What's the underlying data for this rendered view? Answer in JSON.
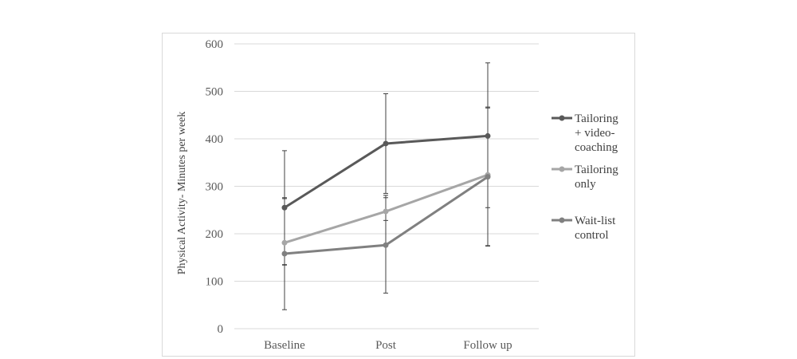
{
  "chart_data": {
    "type": "line",
    "title": "",
    "xlabel": "",
    "ylabel": "Physical Activity- Minutes per week",
    "ylim": [
      0,
      600
    ],
    "yticks": [
      0,
      100,
      200,
      300,
      400,
      500,
      600
    ],
    "categories": [
      "Baseline",
      "Post",
      "Follow up"
    ],
    "grid": "horizontal",
    "legend_position": "right",
    "series": [
      {
        "name": "Tailoring + video-coaching",
        "legend_lines": [
          "Tailoring",
          "+ video-",
          "coaching"
        ],
        "color": "#595959",
        "values": [
          255,
          390,
          406
        ],
        "error_low": [
          135,
          285,
          255
        ],
        "error_high": [
          375,
          495,
          560
        ]
      },
      {
        "name": "Tailoring only",
        "legend_lines": [
          "Tailoring",
          "only"
        ],
        "color": "#a6a6a6",
        "values": [
          181,
          247,
          324
        ],
        "error_low": [
          134,
          228,
          174
        ],
        "error_high": [
          274,
          281,
          467
        ]
      },
      {
        "name": "Wait-list control",
        "legend_lines": [
          "Wait-list",
          "control"
        ],
        "color": "#808080",
        "values": [
          158,
          176,
          320
        ],
        "error_low": [
          40,
          75,
          175
        ],
        "error_high": [
          276,
          276,
          465
        ]
      }
    ]
  }
}
